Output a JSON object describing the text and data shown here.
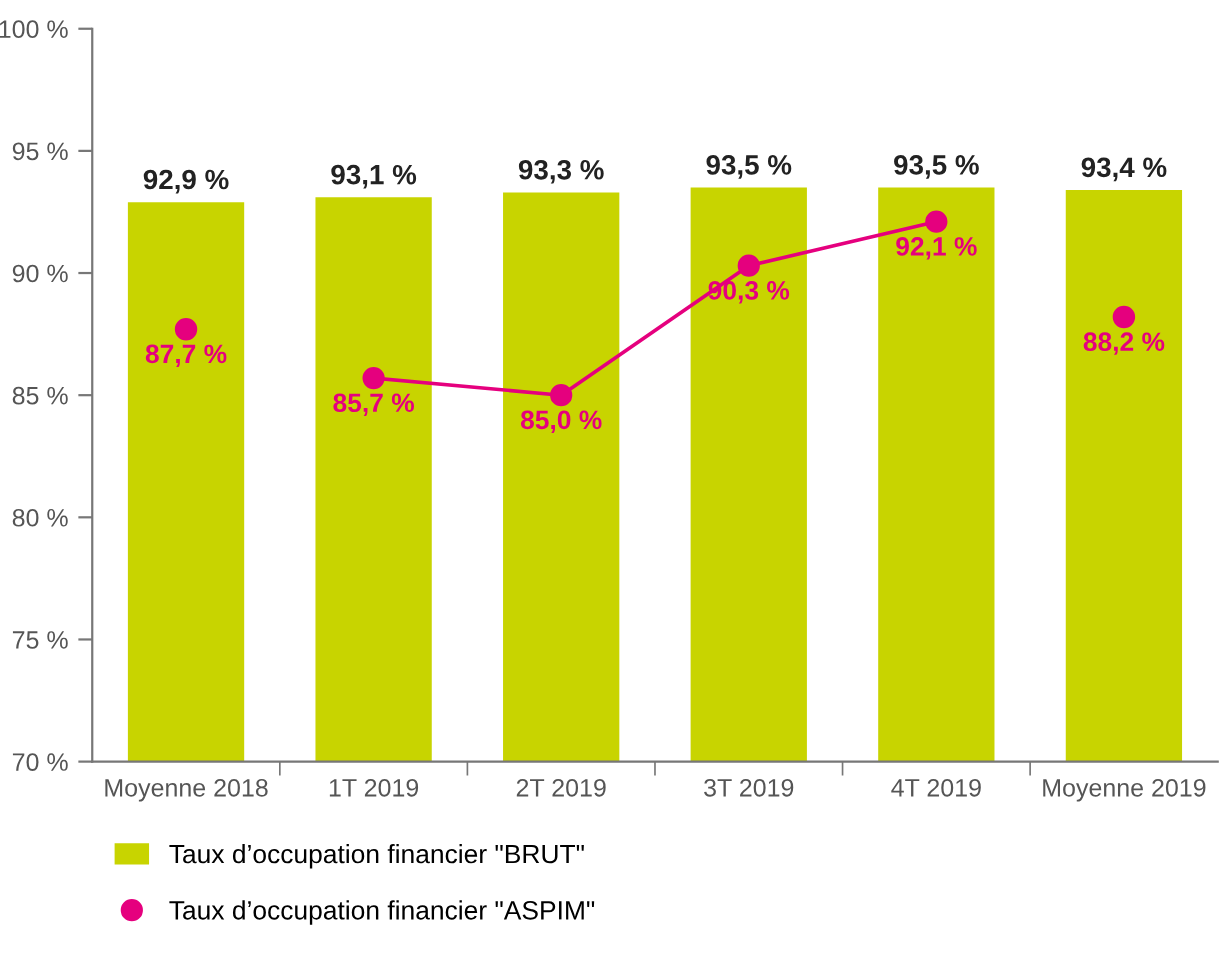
{
  "chart_data": {
    "type": "bar",
    "categories": [
      "Moyenne 2018",
      "1T 2019",
      "2T 2019",
      "3T 2019",
      "4T 2019",
      "Moyenne 2019"
    ],
    "series": [
      {
        "name": "Taux d’occupation financier \"BRUT\"",
        "color": "#c8d400",
        "values": [
          92.9,
          93.1,
          93.3,
          93.5,
          93.5,
          93.4
        ],
        "value_labels": [
          "92,9 %",
          "93,1 %",
          "93,3 %",
          "93,5 %",
          "93,5 %",
          "93,4 %"
        ]
      },
      {
        "name": "Taux d’occupation financier \"ASPIM\"",
        "type": "line",
        "color": "#e5007e",
        "values": [
          null,
          85.7,
          85.0,
          90.3,
          92.1,
          null
        ],
        "value_labels": [
          null,
          "85,7 %",
          "85,0 %",
          "90,3 %",
          "92,1 %",
          null
        ]
      },
      {
        "type": "scatter",
        "color": "#e5007e",
        "values": [
          87.7,
          null,
          null,
          null,
          null,
          88.2
        ],
        "value_labels": [
          "87,7 %",
          null,
          null,
          null,
          null,
          "88,2 %"
        ]
      }
    ],
    "ylim": [
      70,
      100
    ],
    "yticks": [
      {
        "value": 70,
        "label": "70 %"
      },
      {
        "value": 75,
        "label": "75 %"
      },
      {
        "value": 80,
        "label": "80 %"
      },
      {
        "value": 85,
        "label": "85 %"
      },
      {
        "value": 90,
        "label": "90 %"
      },
      {
        "value": 95,
        "label": "95 %"
      },
      {
        "value": 100,
        "label": "100 %"
      }
    ],
    "marker": "circle",
    "line_style": "solid",
    "grid": false,
    "legend": "bottom left"
  }
}
